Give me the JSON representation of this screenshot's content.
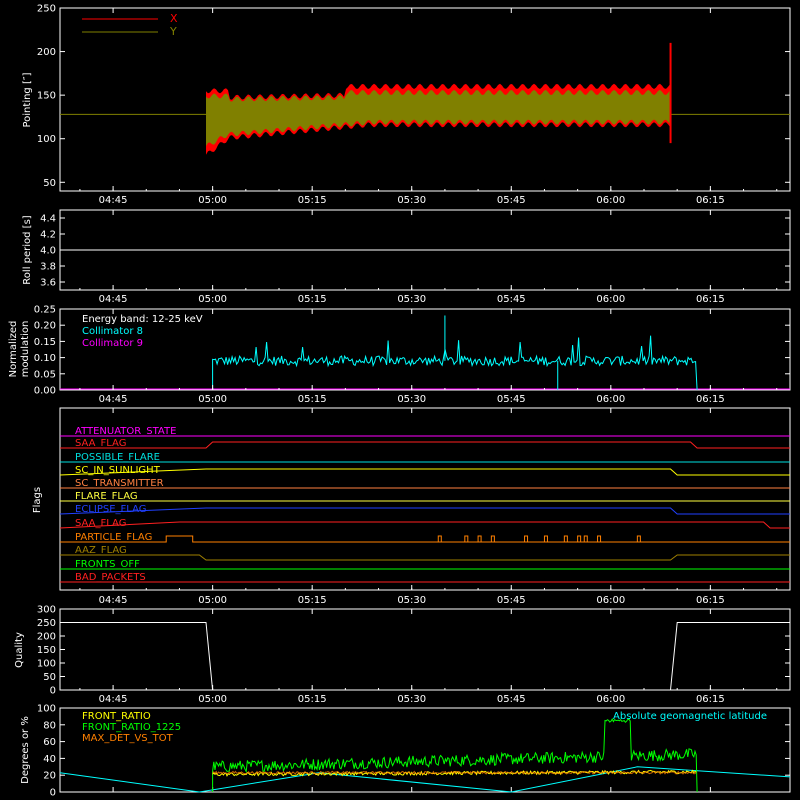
{
  "x_ticks": [
    "04:45",
    "05:00",
    "05:15",
    "05:30",
    "05:45",
    "06:00",
    "06:15"
  ],
  "pointing": {
    "ylabel": "Pointing [″]",
    "yticks": [
      "50",
      "100",
      "150",
      "200",
      "250"
    ],
    "legend": [
      {
        "name": "X",
        "color": "#ff0000"
      },
      {
        "name": "Y",
        "color": "#808000"
      }
    ]
  },
  "roll": {
    "ylabel": "Roll period [s]",
    "yticks": [
      "3.6",
      "3.8",
      "4.0",
      "4.2",
      "4.4"
    ]
  },
  "modulation": {
    "ylabel_line1": "Normalized",
    "ylabel_line2": "modulation",
    "yticks": [
      "0.00",
      "0.05",
      "0.10",
      "0.15",
      "0.20",
      "0.25"
    ],
    "legend": [
      {
        "name": "Energy band: 12-25 keV",
        "color": "#ffffff"
      },
      {
        "name": "Collimator 8",
        "color": "#00ffff"
      },
      {
        "name": "Collimator 9",
        "color": "#ff00ff"
      }
    ]
  },
  "flags": {
    "ylabel": "Flags",
    "items": [
      {
        "name": "ATTENUATOR_STATE",
        "color": "#ff00ff"
      },
      {
        "name": "SAA_FLAG",
        "color": "#ff2020"
      },
      {
        "name": "POSSIBLE_FLARE",
        "color": "#00e0e0"
      },
      {
        "name": "SC_IN_SUNLIGHT",
        "color": "#ffff00"
      },
      {
        "name": "SC_TRANSMITTER",
        "color": "#ff8040"
      },
      {
        "name": "FLARE_FLAG",
        "color": "#ffff40"
      },
      {
        "name": "ECLIPSE_FLAG",
        "color": "#2040ff"
      },
      {
        "name": "SAA_FLAG",
        "color": "#ff2020"
      },
      {
        "name": "PARTICLE_FLAG",
        "color": "#ff8000"
      },
      {
        "name": "AAZ_FLAG",
        "color": "#a08000"
      },
      {
        "name": "FRONTS_OFF",
        "color": "#00ff00"
      },
      {
        "name": "BAD_PACKETS",
        "color": "#ff2020"
      }
    ]
  },
  "quality": {
    "ylabel": "Quality",
    "yticks": [
      "0",
      "50",
      "100",
      "150",
      "200",
      "250",
      "300"
    ]
  },
  "ratio": {
    "ylabel": "Degrees or %",
    "yticks": [
      "0",
      "20",
      "40",
      "60",
      "80",
      "100"
    ],
    "legend": [
      {
        "name": "FRONT_RATIO",
        "color": "#ffff00"
      },
      {
        "name": "FRONT_RATIO_1225",
        "color": "#00ff00"
      },
      {
        "name": "MAX_DET_VS_TOT",
        "color": "#ff8000"
      }
    ],
    "right_label": "Absolute geomagnetic latitude",
    "right_label_color": "#00ffff"
  },
  "colors": {
    "background": "#000000",
    "axes": "#ffffff",
    "x": "#ff0000",
    "y": "#808000",
    "cyan": "#00ffff",
    "magenta": "#ff00ff",
    "yellow": "#ffff00",
    "green": "#00ff00"
  },
  "chart_data": [
    {
      "type": "line",
      "title": "",
      "xlabel": "",
      "ylabel": "Pointing [″]",
      "ylim": [
        40,
        250
      ],
      "series": [
        {
          "name": "X",
          "x_range": [
            "04:59",
            "06:09"
          ],
          "envelope_low": [
            80,
            110,
            115,
            110
          ],
          "envelope_high": [
            155,
            160,
            165,
            210
          ]
        },
        {
          "name": "Y",
          "x_range": [
            "04:59",
            "06:09"
          ],
          "envelope_low": [
            90,
            115,
            118,
            95
          ],
          "envelope_high": [
            150,
            155,
            158,
            160
          ]
        }
      ]
    },
    {
      "type": "line",
      "ylabel": "Roll period [s]",
      "ylim": [
        3.5,
        4.5
      ],
      "series": [
        {
          "x": [
            "04:37",
            "06:27"
          ],
          "y": [
            4.0,
            4.0
          ]
        }
      ]
    },
    {
      "type": "line",
      "ylabel": "Normalized modulation",
      "ylim": [
        0,
        0.25
      ],
      "series": [
        {
          "name": "Collimator 8",
          "x_range": [
            "05:00",
            "06:13"
          ],
          "typical": 0.09,
          "peak": 0.23
        },
        {
          "name": "Collimator 9",
          "value": 0.0
        }
      ]
    },
    {
      "type": "line",
      "ylabel": "Quality",
      "ylim": [
        0,
        300
      ],
      "series": [
        {
          "x": [
            "04:37",
            "04:59",
            "05:00",
            "06:09",
            "06:10",
            "06:27"
          ],
          "y": [
            250,
            250,
            0,
            0,
            250,
            250
          ]
        }
      ]
    },
    {
      "type": "line",
      "ylabel": "Degrees or %",
      "ylim": [
        0,
        100
      ],
      "series": [
        {
          "name": "FRONT_RATIO",
          "x_range": [
            "05:00",
            "06:13"
          ],
          "typical": 22
        },
        {
          "name": "FRONT_RATIO_1225",
          "x_range": [
            "05:00",
            "06:13"
          ],
          "typical": 40,
          "plateau": {
            "x_range": [
              "05:59",
              "06:03"
            ],
            "y": 85
          }
        },
        {
          "name": "MAX_DET_VS_TOT",
          "x_range": [
            "05:00",
            "06:13"
          ],
          "typical": 22
        },
        {
          "name": "Absolute geomagnetic latitude",
          "x": [
            "04:37",
            "04:58",
            "05:16",
            "05:45",
            "06:04",
            "06:27"
          ],
          "y": [
            23,
            0,
            23,
            0,
            30,
            18
          ]
        }
      ]
    }
  ]
}
